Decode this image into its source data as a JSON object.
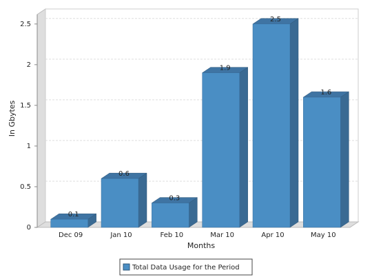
{
  "chart_data": {
    "type": "bar3d",
    "x_label": "Months",
    "y_label": "In Gbytes",
    "categories": [
      "Dec 09",
      "Jan 10",
      "Feb 10",
      "Mar 10",
      "Apr 10",
      "May 10"
    ],
    "series": [
      {
        "name": "Total Data Usage for the Period",
        "color": "#4a8ec4",
        "values": [
          0.1,
          0.6,
          0.3,
          1.9,
          2.5,
          1.6
        ]
      }
    ],
    "ylim": [
      0,
      2.6
    ],
    "yticks": [
      0,
      0.5,
      1,
      1.5,
      2,
      2.5
    ],
    "grid": true,
    "legend": "bottom"
  }
}
